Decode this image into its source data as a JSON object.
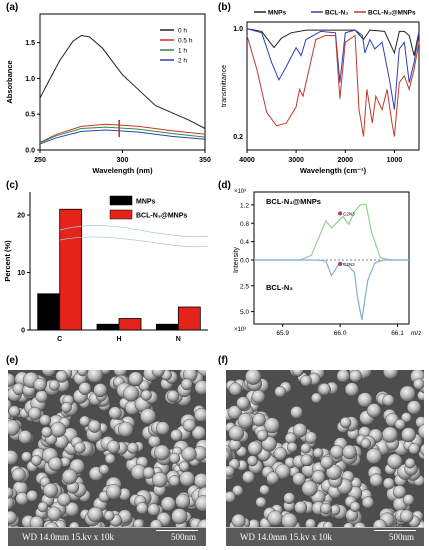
{
  "panels": {
    "a": "(a)",
    "b": "(b)",
    "c": "(c)",
    "d": "(d)",
    "e": "(e)",
    "f": "(f)"
  },
  "colors": {
    "black": "#222222",
    "red": "#c0392b",
    "green": "#2e8b3e",
    "blue": "#2f3fb5",
    "bar_black": "#000000",
    "bar_red": "#e4231b",
    "nmr_green": "#8fd18f",
    "nmr_blue": "#7fb0d8"
  },
  "chart_data": [
    {
      "id": "a",
      "type": "line",
      "xlabel": "Wavelength (nm)",
      "ylabel": "Absorbance",
      "xlim": [
        250,
        350
      ],
      "ylim": [
        0,
        1.9
      ],
      "xticks": [
        250,
        300,
        350
      ],
      "yticks": [
        0.0,
        0.5,
        1.0,
        1.5
      ],
      "series": [
        {
          "name": "0 h",
          "x": [
            245,
            255,
            262,
            270,
            275,
            280,
            288,
            300,
            320,
            340,
            352
          ],
          "y": [
            0.5,
            0.95,
            1.25,
            1.52,
            1.6,
            1.58,
            1.42,
            1.05,
            0.62,
            0.42,
            0.3
          ]
        },
        {
          "name": "0.5 h",
          "x": [
            245,
            260,
            275,
            290,
            310,
            330,
            352
          ],
          "y": [
            0.05,
            0.22,
            0.33,
            0.36,
            0.33,
            0.27,
            0.22
          ]
        },
        {
          "name": "1 h",
          "x": [
            245,
            260,
            275,
            290,
            310,
            330,
            352
          ],
          "y": [
            0.05,
            0.2,
            0.3,
            0.32,
            0.29,
            0.23,
            0.18
          ]
        },
        {
          "name": "2 h",
          "x": [
            245,
            260,
            275,
            290,
            310,
            330,
            352
          ],
          "y": [
            0.04,
            0.17,
            0.26,
            0.28,
            0.25,
            0.19,
            0.15
          ]
        }
      ]
    },
    {
      "id": "b",
      "type": "line",
      "xlabel": "Wavelength (cm⁻¹)",
      "ylabel": "transmittance",
      "xlim": [
        4000,
        500
      ],
      "ylim": [
        0.1,
        1.05
      ],
      "xticks": [
        4000,
        3000,
        2000,
        1000
      ],
      "yticks": [
        0.2,
        1.0
      ],
      "series": [
        {
          "name": "MNPs",
          "x": [
            4000,
            3700,
            3450,
            3300,
            3100,
            2800,
            2400,
            2100,
            1800,
            1630,
            1500,
            1200,
            1100,
            1000,
            900,
            800,
            700,
            600,
            500
          ],
          "y": [
            1.0,
            0.98,
            0.86,
            0.93,
            0.97,
            0.99,
            0.99,
            0.99,
            0.99,
            0.92,
            0.99,
            0.98,
            0.9,
            0.82,
            0.98,
            0.98,
            0.95,
            0.8,
            0.98
          ]
        },
        {
          "name": "BCL-N₃",
          "x": [
            4000,
            3700,
            3500,
            3350,
            3200,
            3000,
            2900,
            2800,
            2500,
            2200,
            2110,
            2000,
            1800,
            1650,
            1600,
            1500,
            1400,
            1250,
            1100,
            1000,
            900,
            800,
            700,
            600,
            500
          ],
          "y": [
            1.0,
            0.97,
            0.75,
            0.62,
            0.72,
            0.86,
            0.8,
            0.92,
            0.98,
            0.97,
            0.6,
            0.97,
            0.99,
            0.95,
            0.82,
            0.92,
            0.85,
            0.9,
            0.62,
            0.4,
            0.85,
            0.9,
            0.6,
            0.75,
            0.97
          ]
        },
        {
          "name": "BCL-N₃@MNPs",
          "x": [
            4000,
            3800,
            3600,
            3400,
            3200,
            3000,
            2930,
            2860,
            2600,
            2400,
            2200,
            2110,
            2000,
            1800,
            1720,
            1630,
            1560,
            1450,
            1380,
            1250,
            1150,
            1050,
            1000,
            900,
            800,
            700,
            600,
            500
          ],
          "y": [
            0.95,
            0.7,
            0.38,
            0.28,
            0.3,
            0.42,
            0.55,
            0.5,
            0.92,
            0.95,
            0.95,
            0.48,
            0.9,
            0.95,
            0.4,
            0.2,
            0.55,
            0.3,
            0.5,
            0.4,
            0.55,
            0.3,
            0.2,
            0.6,
            0.65,
            0.55,
            0.7,
            0.9
          ]
        }
      ]
    },
    {
      "id": "c",
      "type": "bar",
      "ylabel": "Percent (%)",
      "ylim": [
        0,
        24
      ],
      "yticks": [
        0,
        10,
        20
      ],
      "categories": [
        "C",
        "H",
        "N"
      ],
      "series": [
        {
          "name": "MNPs",
          "values": [
            6.3,
            1.0,
            1.0
          ]
        },
        {
          "name": "BCL-N₃@MNPs",
          "values": [
            21.0,
            2.0,
            4.0
          ]
        }
      ]
    },
    {
      "id": "d",
      "type": "line",
      "xlabel": "m/z",
      "ylabel": "Intensity",
      "xlim": [
        65.85,
        66.12
      ],
      "xticks": [
        65.9,
        66.0,
        66.1
      ],
      "yticks_upper": [
        0.4,
        0.8,
        1.2
      ],
      "yticks_lower": [
        0.0,
        2.5,
        5.0
      ],
      "upper_label": "BCL-N₃@MNPs",
      "lower_label": "BCL-N₃",
      "y_multiplier": "×10³",
      "marker_label": "C2N3",
      "series": [
        {
          "name": "BCL-N₃@MNPs",
          "x": [
            65.93,
            65.95,
            65.965,
            65.975,
            65.985,
            65.995,
            66.005,
            66.015,
            66.025,
            66.035,
            66.045,
            66.055,
            66.07,
            66.09
          ],
          "y": [
            0.0,
            0.1,
            0.55,
            0.85,
            0.7,
            0.82,
            0.95,
            0.78,
            1.05,
            1.2,
            1.22,
            0.6,
            0.05,
            0.0
          ]
        },
        {
          "name": "BCL-N₃",
          "x": [
            65.96,
            65.975,
            65.985,
            66.0,
            66.015,
            66.025,
            66.03,
            66.038,
            66.048,
            66.06,
            66.075
          ],
          "y": [
            0.0,
            0.1,
            1.5,
            0.2,
            0.6,
            1.2,
            3.5,
            5.8,
            2.0,
            0.3,
            0.0
          ]
        }
      ]
    }
  ],
  "sem": {
    "e": {
      "info": "WD  14.0mm 15.kv x 10k",
      "scale": "500nm"
    },
    "f": {
      "info": "WD  14.0mm 15.kv x 10k",
      "scale": "500nm"
    }
  }
}
